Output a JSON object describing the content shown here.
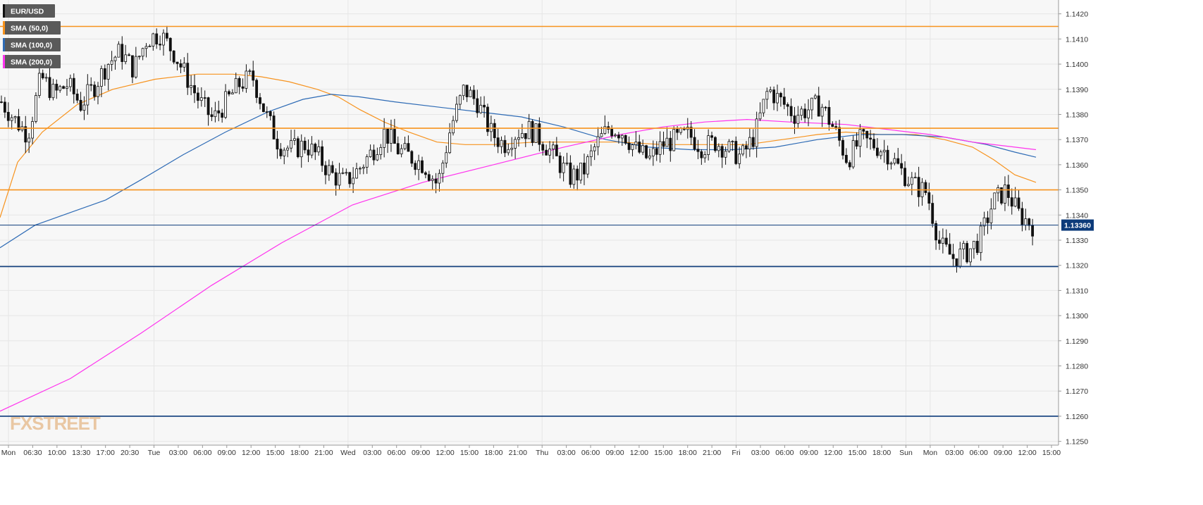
{
  "chart_data": {
    "type": "candlestick",
    "symbol": "EUR/USD",
    "last_price_label": "1.13360",
    "last_price": 1.1336,
    "legend": [
      {
        "label": "EUR/USD",
        "color": "#111111"
      },
      {
        "label": "SMA (50,0)",
        "color": "#f7931e"
      },
      {
        "label": "SMA (100,0)",
        "color": "#2e6bb5"
      },
      {
        "label": "SMA (200,0)",
        "color": "#ff33ee"
      }
    ],
    "ylim": [
      1.12485,
      1.14255
    ],
    "y_ticks": [
      "1.1250",
      "1.1260",
      "1.1270",
      "1.1280",
      "1.1290",
      "1.1300",
      "1.1310",
      "1.1320",
      "1.1330",
      "1.1340",
      "1.1350",
      "1.1360",
      "1.1370",
      "1.1380",
      "1.1390",
      "1.1400",
      "1.1410",
      "1.1420"
    ],
    "x_labels": [
      "Mon",
      "06:30",
      "10:00",
      "13:30",
      "17:00",
      "20:30",
      "Tue",
      "03:00",
      "06:00",
      "09:00",
      "12:00",
      "15:00",
      "18:00",
      "21:00",
      "Wed",
      "03:00",
      "06:00",
      "09:00",
      "12:00",
      "15:00",
      "18:00",
      "21:00",
      "Thu",
      "03:00",
      "06:00",
      "09:00",
      "12:00",
      "15:00",
      "18:00",
      "21:00",
      "Fri",
      "03:00",
      "06:00",
      "09:00",
      "12:00",
      "15:00",
      "18:00",
      "Sun",
      "Mon",
      "03:00",
      "06:00",
      "09:00",
      "12:00",
      "15:00"
    ],
    "grid": "on",
    "horizontal_levels": [
      {
        "value": 1.1415,
        "color": "#f7931e"
      },
      {
        "value": 1.13745,
        "color": "#f7931e"
      },
      {
        "value": 1.135,
        "color": "#f7931e"
      },
      {
        "value": 1.1336,
        "color": "#0d3b7a"
      },
      {
        "value": 1.13195,
        "color": "#0d3b7a"
      },
      {
        "value": 1.126,
        "color": "#0d3b7a"
      }
    ],
    "candle_anchors": [
      1.1385,
      1.1378,
      1.1372,
      1.1395,
      1.1388,
      1.1392,
      1.1384,
      1.1391,
      1.14,
      1.1405,
      1.1398,
      1.141,
      1.1412,
      1.1405,
      1.1395,
      1.1385,
      1.1378,
      1.1385,
      1.1392,
      1.1395,
      1.138,
      1.1368,
      1.1366,
      1.1368,
      1.1363,
      1.1356,
      1.1353,
      1.1358,
      1.1365,
      1.1373,
      1.1366,
      1.1363,
      1.136,
      1.1352,
      1.1375,
      1.139,
      1.1385,
      1.1373,
      1.1368,
      1.1373,
      1.1374,
      1.1369,
      1.1362,
      1.1355,
      1.1357,
      1.1368,
      1.1375,
      1.1373,
      1.1366,
      1.1362,
      1.1368,
      1.137,
      1.1372,
      1.1367,
      1.1369,
      1.1366,
      1.1363,
      1.1372,
      1.139,
      1.1385,
      1.138,
      1.1382,
      1.1384,
      1.1374,
      1.1362,
      1.137,
      1.1368,
      1.1365,
      1.1358,
      1.1352,
      1.1349,
      1.1328,
      1.1323,
      1.1325,
      1.133,
      1.1345,
      1.135,
      1.134,
      1.1336
    ],
    "candle_seed": 7,
    "sma": [
      {
        "name": "SMA (50,0)",
        "color": "#f7931e",
        "points": [
          [
            0,
            1.1339
          ],
          [
            25,
            1.1361
          ],
          [
            60,
            1.1373
          ],
          [
            110,
            1.1384
          ],
          [
            160,
            1.139
          ],
          [
            220,
            1.1394
          ],
          [
            280,
            1.1396
          ],
          [
            330,
            1.1396
          ],
          [
            370,
            1.1395
          ],
          [
            410,
            1.1393
          ],
          [
            450,
            1.139
          ],
          [
            480,
            1.1387
          ],
          [
            510,
            1.1382
          ],
          [
            545,
            1.1377
          ],
          [
            580,
            1.1373
          ],
          [
            620,
            1.1369
          ],
          [
            660,
            1.1368
          ],
          [
            700,
            1.1368
          ],
          [
            760,
            1.1369
          ],
          [
            820,
            1.1369
          ],
          [
            880,
            1.1369
          ],
          [
            940,
            1.1368
          ],
          [
            1000,
            1.1368
          ],
          [
            1060,
            1.1368
          ],
          [
            1110,
            1.137
          ],
          [
            1160,
            1.1372
          ],
          [
            1200,
            1.1373
          ],
          [
            1250,
            1.1372
          ],
          [
            1300,
            1.1372
          ],
          [
            1340,
            1.137
          ],
          [
            1380,
            1.1367
          ],
          [
            1410,
            1.1362
          ],
          [
            1440,
            1.1356
          ],
          [
            1470,
            1.1353
          ]
        ]
      },
      {
        "name": "SMA (100,0)",
        "color": "#2e6bb5",
        "points": [
          [
            0,
            1.1327
          ],
          [
            50,
            1.1336
          ],
          [
            100,
            1.1341
          ],
          [
            150,
            1.1346
          ],
          [
            200,
            1.1354
          ],
          [
            260,
            1.1364
          ],
          [
            320,
            1.1373
          ],
          [
            380,
            1.1381
          ],
          [
            430,
            1.1386
          ],
          [
            470,
            1.1388
          ],
          [
            510,
            1.1387
          ],
          [
            560,
            1.1385
          ],
          [
            620,
            1.1383
          ],
          [
            680,
            1.1381
          ],
          [
            740,
            1.1379
          ],
          [
            800,
            1.1375
          ],
          [
            860,
            1.137
          ],
          [
            920,
            1.1367
          ],
          [
            980,
            1.1366
          ],
          [
            1040,
            1.1366
          ],
          [
            1100,
            1.1367
          ],
          [
            1160,
            1.137
          ],
          [
            1220,
            1.1372
          ],
          [
            1280,
            1.1372
          ],
          [
            1340,
            1.1371
          ],
          [
            1400,
            1.1368
          ],
          [
            1440,
            1.1365
          ],
          [
            1470,
            1.1363
          ]
        ]
      },
      {
        "name": "SMA (200,0)",
        "color": "#ff33ee",
        "points": [
          [
            0,
            1.1262
          ],
          [
            100,
            1.1275
          ],
          [
            200,
            1.1293
          ],
          [
            300,
            1.1312
          ],
          [
            400,
            1.1329
          ],
          [
            500,
            1.1344
          ],
          [
            600,
            1.1353
          ],
          [
            700,
            1.136
          ],
          [
            800,
            1.1367
          ],
          [
            880,
            1.1372
          ],
          [
            940,
            1.1375
          ],
          [
            1000,
            1.1377
          ],
          [
            1060,
            1.1378
          ],
          [
            1120,
            1.1377
          ],
          [
            1200,
            1.1376
          ],
          [
            1260,
            1.1374
          ],
          [
            1320,
            1.1372
          ],
          [
            1380,
            1.1369
          ],
          [
            1440,
            1.1367
          ],
          [
            1470,
            1.1366
          ]
        ]
      }
    ]
  },
  "brand": {
    "text": "FXSTREET"
  }
}
